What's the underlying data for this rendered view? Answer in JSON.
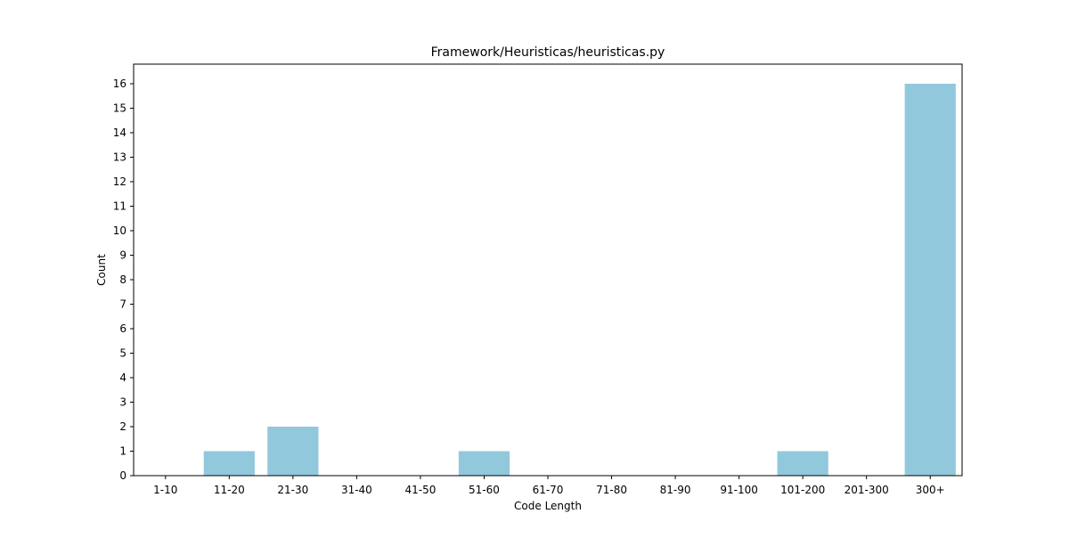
{
  "chart_data": {
    "type": "bar",
    "title": "Framework/Heuristicas/heuristicas.py",
    "xlabel": "Code Length",
    "ylabel": "Count",
    "categories": [
      "1-10",
      "11-20",
      "21-30",
      "31-40",
      "41-50",
      "51-60",
      "61-70",
      "71-80",
      "81-90",
      "91-100",
      "101-200",
      "201-300",
      "300+"
    ],
    "values": [
      0,
      1,
      2,
      0,
      0,
      1,
      0,
      0,
      0,
      0,
      1,
      0,
      16
    ],
    "ylim": [
      0,
      16.8
    ],
    "yticks": [
      0,
      1,
      2,
      3,
      4,
      5,
      6,
      7,
      8,
      9,
      10,
      11,
      12,
      13,
      14,
      15,
      16
    ],
    "bar_color": "#92c8dc",
    "grid": false,
    "legend": "none"
  }
}
